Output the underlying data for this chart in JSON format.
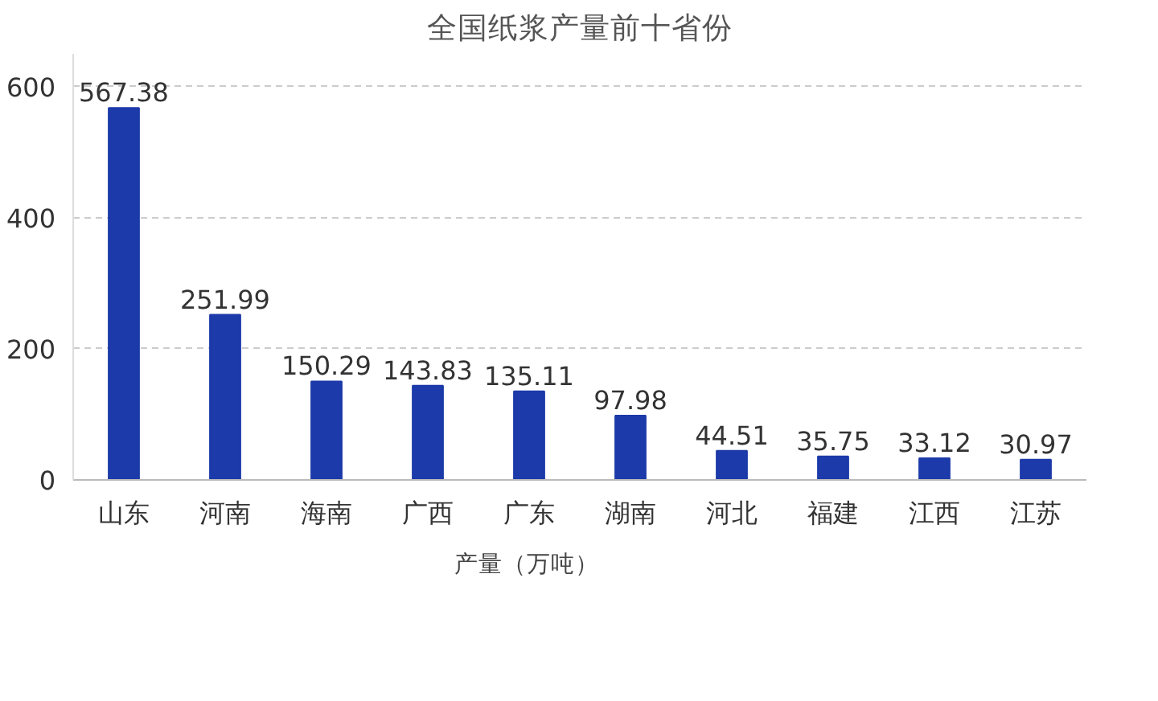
{
  "chart_data": {
    "type": "bar",
    "title": "全国纸浆产量前十省份",
    "categories": [
      "山东",
      "河南",
      "海南",
      "广西",
      "广东",
      "湖南",
      "河北",
      "福建",
      "江西",
      "江苏"
    ],
    "series": [
      {
        "name": "产量（万吨）",
        "color": "#1c3aa9",
        "values": [
          567.38,
          251.99,
          150.29,
          143.83,
          135.11,
          97.98,
          44.51,
          35.75,
          33.12,
          30.97
        ]
      }
    ],
    "ylim": [
      0,
      650
    ],
    "yticks": [
      0,
      200,
      400,
      600
    ],
    "grid": "y",
    "legend": "bottom",
    "data_labels": true
  }
}
